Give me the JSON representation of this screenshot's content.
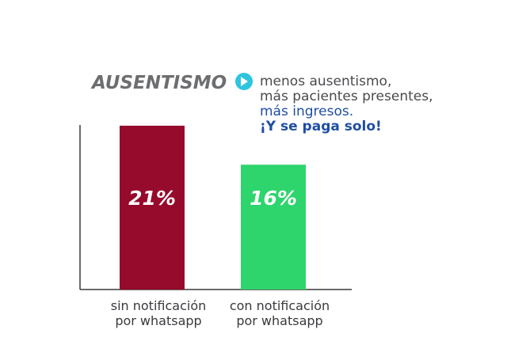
{
  "title": "AUSENTISMO",
  "description": {
    "line1": "menos ausentismo,",
    "line2": "más pacientes presentes,",
    "line3": "más ingresos.",
    "line4": "¡Y se paga solo!"
  },
  "icon": "play-circle-icon",
  "colors": {
    "title": "#6d6e70",
    "icon": "#2ec4e0",
    "text_gray": "#4a4a4f",
    "text_blue": "#1f4ea3",
    "bar_without": "#960a2c",
    "bar_with": "#2ed46c",
    "axis": "#3a3a3a"
  },
  "chart_data": {
    "type": "bar",
    "categories": [
      [
        "sin notificación",
        "por whatsapp"
      ],
      [
        "con notificación",
        "por whatsapp"
      ]
    ],
    "values": [
      21,
      16
    ],
    "value_labels": [
      "21%",
      "16%"
    ],
    "unit": "%",
    "ylim": [
      0,
      21.6
    ],
    "grid": false,
    "legend": "none"
  }
}
